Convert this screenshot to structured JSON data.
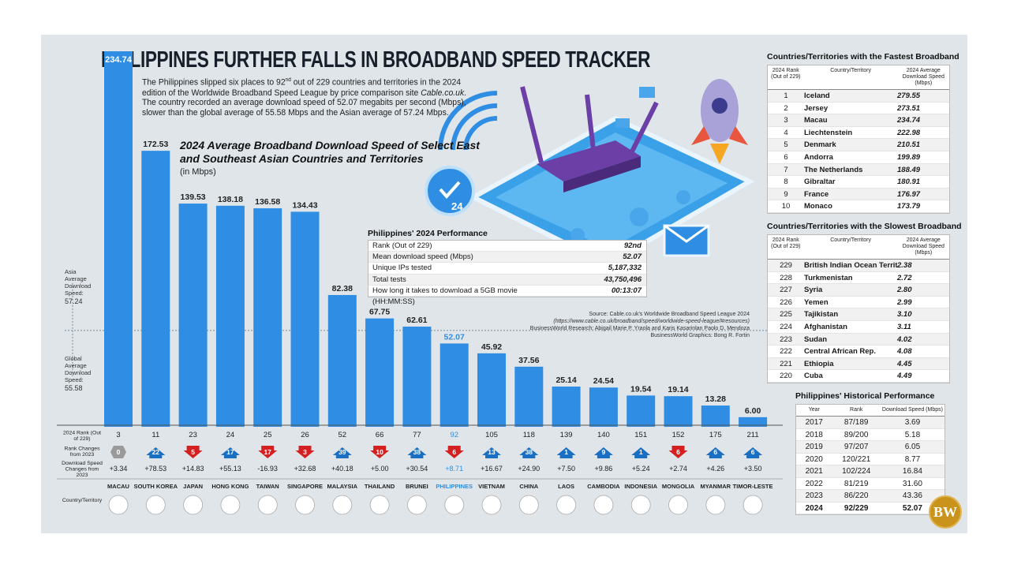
{
  "title": "PHILIPPINES FURTHER FALLS IN BROADBAND SPEED TRACKER",
  "intro": {
    "part1": "The Philippines slipped six places to 92",
    "sup": "nd",
    "part2": " out of 229 countries and territories in the 2024 edition of the Worldwide Broadband Speed League by price comparison site ",
    "site": "Cable.co.uk",
    "part3": ". The country recorded an average download speed of 52.07 megabits per second (Mbps), slower than the global average of 55.58 Mbps and the Asian average of 57.24 Mbps."
  },
  "chart_data": {
    "type": "bar",
    "title": "2024 Average Broadband Download Speed of Select East and Southeast Asian Countries and Territories",
    "unit": "(in Mbps)",
    "ylim": [
      0,
      240
    ],
    "categories": [
      "MACAU",
      "SOUTH KOREA",
      "JAPAN",
      "HONG KONG",
      "TAIWAN",
      "SINGAPORE",
      "MALAYSIA",
      "THAILAND",
      "BRUNEI",
      "PHILIPPINES",
      "VIETNAM",
      "CHINA",
      "LAOS",
      "CAMBODIA",
      "INDONESIA",
      "MONGOLIA",
      "MYANMAR",
      "TIMOR-LESTE"
    ],
    "values": [
      234.74,
      172.53,
      139.53,
      138.18,
      136.58,
      134.43,
      82.38,
      67.75,
      62.61,
      52.07,
      45.92,
      37.56,
      25.14,
      24.54,
      19.54,
      19.14,
      13.28,
      6.0
    ],
    "value_labels": [
      "234.74",
      "172.53",
      "139.53",
      "138.18",
      "136.58",
      "134.43",
      "82.38",
      "67.75",
      "62.61",
      "52.07",
      "45.92",
      "37.56",
      "25.14",
      "24.54",
      "19.54",
      "19.14",
      "13.28",
      "6.00"
    ],
    "ranks": [
      "3",
      "11",
      "23",
      "24",
      "25",
      "26",
      "52",
      "66",
      "77",
      "92",
      "105",
      "118",
      "139",
      "140",
      "151",
      "152",
      "175",
      "211"
    ],
    "rank_changes": [
      "0",
      "22",
      "5",
      "17",
      "17",
      "3",
      "39",
      "10",
      "38",
      "6",
      "13",
      "38",
      "1",
      "9",
      "1",
      "6",
      "6",
      "6"
    ],
    "rank_change_dir": [
      "same",
      "up",
      "down",
      "up",
      "down",
      "down",
      "up",
      "down",
      "up",
      "down",
      "up",
      "up",
      "up",
      "up",
      "up",
      "down",
      "up",
      "up"
    ],
    "speed_changes": [
      "+3.34",
      "+78.53",
      "+14.83",
      "+55.13",
      "-16.93",
      "+32.68",
      "+40.18",
      "+5.00",
      "+30.54",
      "+8.71",
      "+16.67",
      "+24.90",
      "+7.50",
      "+9.86",
      "+5.24",
      "+2.74",
      "+4.26",
      "+3.50"
    ],
    "highlight": "PHILIPPINES",
    "reference_lines": [
      {
        "name": "Asia Average Download Speed:",
        "value": 57.24,
        "label": "57.24"
      },
      {
        "name": "Global Average Download Speed:",
        "value": 55.58,
        "label": "55.58"
      }
    ],
    "row_labels": {
      "rank": "2024 Rank (Out of 229)",
      "rank_change": "Rank Changes from 2023",
      "speed_change": "Download Speed Changes from 2023",
      "country": "Country/Territory"
    }
  },
  "colors": {
    "bar": "#2f8ee3",
    "bar_highlight": "#2f8ee3",
    "highlight_text": "#2f8ee3",
    "up": "#1b6fc2",
    "down": "#d42020",
    "same": "#9a9a9a",
    "background": "#dfe5e9"
  },
  "fastest": {
    "title": "Countries/Territories with the Fastest Broadband",
    "headers": [
      "2024 Rank (Out of 229)",
      "Country/Territory",
      "2024 Average Download Speed (Mbps)"
    ],
    "rows": [
      [
        "1",
        "Iceland",
        "279.55"
      ],
      [
        "2",
        "Jersey",
        "273.51"
      ],
      [
        "3",
        "Macau",
        "234.74"
      ],
      [
        "4",
        "Liechtenstein",
        "222.98"
      ],
      [
        "5",
        "Denmark",
        "210.51"
      ],
      [
        "6",
        "Andorra",
        "199.89"
      ],
      [
        "7",
        "The Netherlands",
        "188.49"
      ],
      [
        "8",
        "Gibraltar",
        "180.91"
      ],
      [
        "9",
        "France",
        "176.97"
      ],
      [
        "10",
        "Monaco",
        "173.79"
      ]
    ]
  },
  "slowest": {
    "title": "Countries/Territories with the Slowest Broadband",
    "headers": [
      "2024 Rank (Out of 229)",
      "Country/Territory",
      "2024 Average Download Speed (Mbps)"
    ],
    "rows": [
      [
        "229",
        "British Indian Ocean Territory",
        "2.38"
      ],
      [
        "228",
        "Turkmenistan",
        "2.72"
      ],
      [
        "227",
        "Syria",
        "2.80"
      ],
      [
        "226",
        "Yemen",
        "2.99"
      ],
      [
        "225",
        "Tajikistan",
        "3.10"
      ],
      [
        "224",
        "Afghanistan",
        "3.11"
      ],
      [
        "223",
        "Sudan",
        "4.02"
      ],
      [
        "222",
        "Central African Rep.",
        "4.08"
      ],
      [
        "221",
        "Ethiopia",
        "4.45"
      ],
      [
        "220",
        "Cuba",
        "4.49"
      ]
    ]
  },
  "performance": {
    "title": "Philippines' 2024 Performance",
    "rows": [
      [
        "Rank (Out of 229)",
        "92nd"
      ],
      [
        "Mean download speed (Mbps)",
        "52.07"
      ],
      [
        "Unique IPs tested",
        "5,187,332"
      ],
      [
        "Total tests",
        "43,750,496"
      ],
      [
        "How long it takes to download a 5GB movie (HH:MM:SS)",
        "00:13:07"
      ]
    ]
  },
  "history": {
    "title": "Philippines' Historical Performance",
    "headers": [
      "Year",
      "Rank",
      "Download Speed (Mbps)"
    ],
    "rows": [
      [
        "2017",
        "87/189",
        "3.69"
      ],
      [
        "2018",
        "89/200",
        "5.18"
      ],
      [
        "2019",
        "97/207",
        "6.05"
      ],
      [
        "2020",
        "120/221",
        "8.77"
      ],
      [
        "2021",
        "102/224",
        "16.84"
      ],
      [
        "2022",
        "81/219",
        "31.60"
      ],
      [
        "2023",
        "86/220",
        "43.36"
      ],
      [
        "2024",
        "92/229",
        "52.07"
      ]
    ]
  },
  "source": {
    "line1": "Source: Cable.co.uk's Worldwide Broadband Speed League 2024",
    "line2": "(https://www.cable.co.uk/broadband/speed/worldwide-speed-league/#resources)",
    "line3": "BusinessWorld Research: Abigail Marie P. Yraola and Karis Kasarinlan Paolo D. Mendoza",
    "line4": "BusinessWorld Graphics: Bong R. Fortin"
  },
  "logo": "BW"
}
